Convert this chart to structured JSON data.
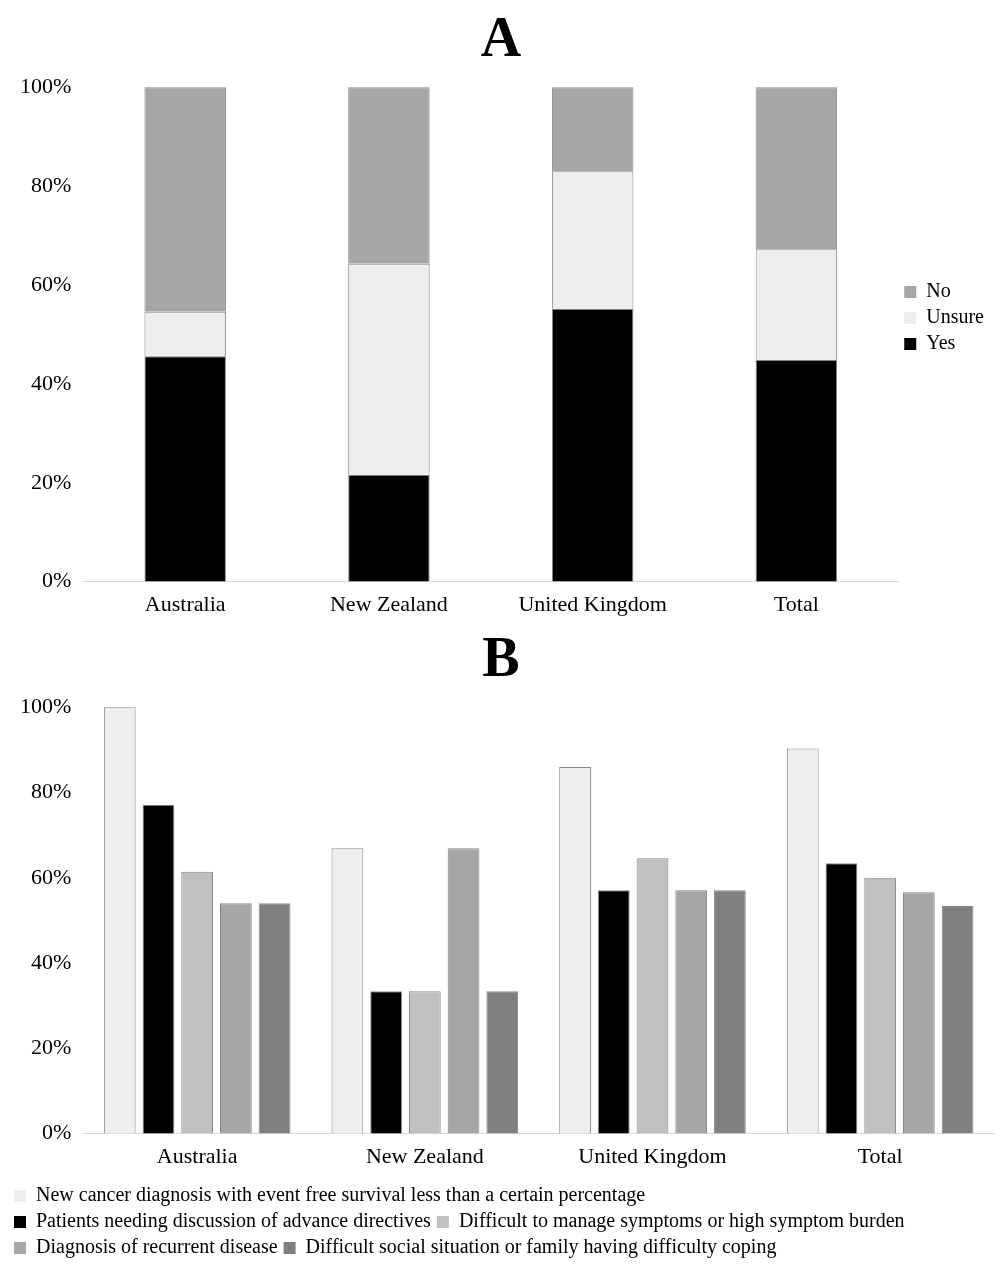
{
  "chart_data": [
    {
      "type": "bar",
      "title": "A",
      "stacked": true,
      "legend": "right",
      "grid": false,
      "categories": [
        "Australia",
        "New Zealand",
        "United Kingdom",
        "Total"
      ],
      "series": [
        {
          "name": "Yes",
          "color": "#000000",
          "values": [
            45.6,
            21.6,
            55.2,
            44.8
          ]
        },
        {
          "name": "Unsure",
          "color": "#ededed",
          "values": [
            9.0,
            42.7,
            27.8,
            22.4
          ]
        },
        {
          "name": "No",
          "color": "#a6a6a6",
          "values": [
            45.4,
            35.7,
            17.0,
            32.8
          ]
        }
      ],
      "ylim": [
        0,
        100
      ],
      "yticks": [
        {
          "value": 0,
          "label": "0%"
        },
        {
          "value": 20,
          "label": "20%"
        },
        {
          "value": 40,
          "label": "40%"
        },
        {
          "value": 60,
          "label": "60%"
        },
        {
          "value": 80,
          "label": "80%"
        },
        {
          "value": 100,
          "label": "100%"
        }
      ]
    },
    {
      "type": "bar",
      "title": "B",
      "legend": "bottom",
      "grid": false,
      "categories": [
        "Australia",
        "New Zealand",
        "United Kingdom",
        "Total"
      ],
      "series": [
        {
          "name": "New cancer diagnosis with event free survival less than a certain percentage",
          "color": "#efefef",
          "values": [
            100,
            66.9,
            86.0,
            90.3
          ]
        },
        {
          "name": "Patients needing discussion of advance directives",
          "color": "#000000",
          "values": [
            77.1,
            33.4,
            57.1,
            63.4
          ]
        },
        {
          "name": "Difficult to manage symptoms or high symptom burden",
          "color": "#c0c0c0",
          "values": [
            61.4,
            33.4,
            64.6,
            60.0
          ]
        },
        {
          "name": "Diagnosis of recurrent disease",
          "color": "#a6a6a6",
          "values": [
            54.0,
            66.9,
            57.1,
            56.6
          ]
        },
        {
          "name": "Difficult social situation or family having difficulty coping",
          "color": "#7f7f7f",
          "values": [
            54.0,
            33.4,
            57.1,
            53.4
          ]
        }
      ],
      "ylim": [
        0,
        100
      ],
      "yticks": [
        {
          "value": 0,
          "label": "0%"
        },
        {
          "value": 20,
          "label": "20%"
        },
        {
          "value": 40,
          "label": "40%"
        },
        {
          "value": 60,
          "label": "60%"
        },
        {
          "value": 80,
          "label": "80%"
        },
        {
          "value": 100,
          "label": "100%"
        }
      ]
    }
  ]
}
